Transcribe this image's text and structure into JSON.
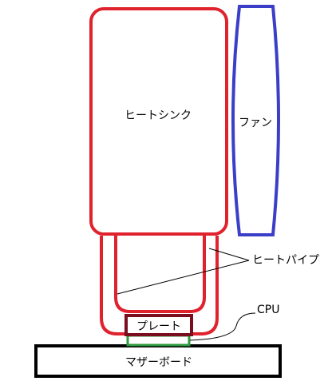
{
  "labels": {
    "heatsink": "ヒートシンク",
    "fan": "ファン",
    "heatpipe": "ヒートパイプ",
    "cpu": "CPU",
    "plate": "プレート",
    "motherboard": "マザーボード"
  },
  "colors": {
    "heatsink": "#e0222d",
    "heatpipe": "#e0222d",
    "fan": "#3b3fc8",
    "plate": "#7a0d1e",
    "cpu": "#2e9a3e",
    "motherboard": "#000000",
    "leader": "#000000"
  }
}
